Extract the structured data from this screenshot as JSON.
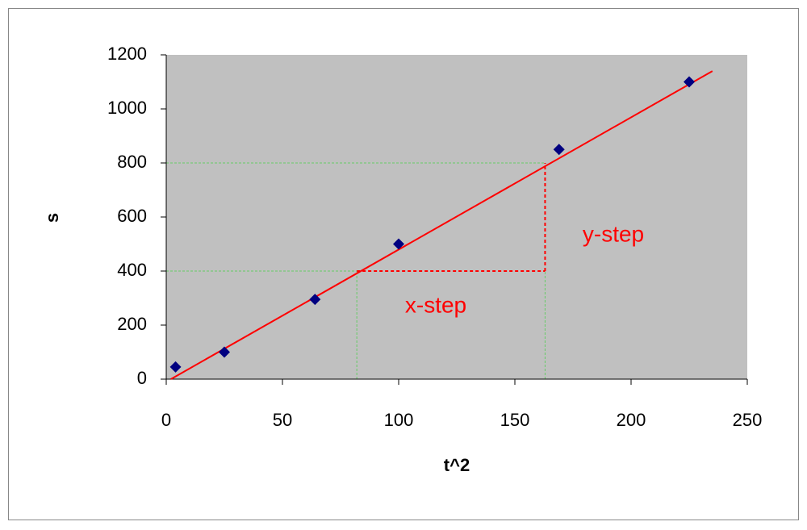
{
  "chart_data": {
    "type": "scatter",
    "x_label": "t^2",
    "y_label": "s",
    "series": [
      {
        "color": "#000080",
        "x": [
          4,
          25,
          64,
          100,
          169,
          225
        ],
        "values": [
          45,
          100,
          295,
          500,
          850,
          1100
        ]
      }
    ],
    "trendline": {
      "color": "#ff0000",
      "x": [
        2,
        235
      ],
      "values": [
        0,
        1140
      ]
    },
    "step": {
      "x": [
        82,
        163
      ],
      "y": [
        400,
        800
      ],
      "guide_color": "#66cc66",
      "color": "#ff0000"
    },
    "annotations": [
      "x-step",
      "y-step"
    ],
    "plot_background": "#c0c0c0",
    "xlim": [
      0,
      250
    ],
    "xticks": [
      0,
      50,
      100,
      150,
      200,
      250
    ],
    "ylim": [
      0,
      1200
    ],
    "yticks": [
      0,
      200,
      400,
      600,
      800,
      1000,
      1200
    ],
    "grid": false
  }
}
